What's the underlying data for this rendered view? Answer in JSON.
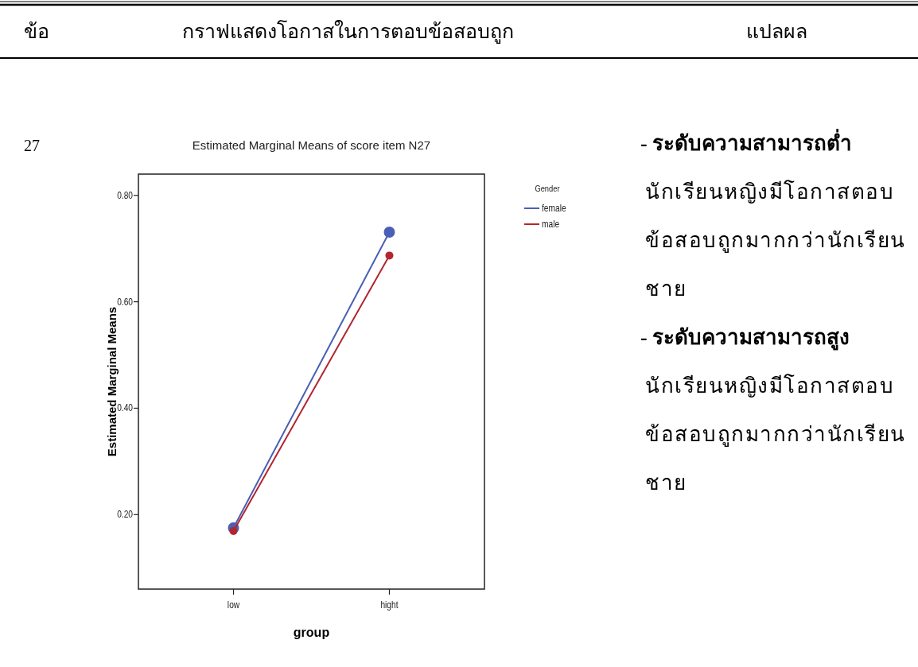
{
  "chart_data": {
    "type": "line",
    "title": "Estimated Marginal Means of score item N27",
    "xlabel": "group",
    "ylabel": "Estimated Marginal Means",
    "legend_title": "Gender",
    "categories": [
      "low",
      "hight"
    ],
    "series": [
      {
        "name": "female",
        "color": "#4a5fb5",
        "values": [
          0.175,
          0.731
        ]
      },
      {
        "name": "male",
        "color": "#b22630",
        "values": [
          0.169,
          0.687
        ]
      }
    ],
    "ylim": [
      0.06,
      0.84
    ],
    "yticks": [
      {
        "value": 0.2,
        "label": "0.20"
      },
      {
        "value": 0.4,
        "label": "0.40"
      },
      {
        "value": 0.6,
        "label": "0.60"
      },
      {
        "value": 0.8,
        "label": "0.80"
      }
    ],
    "marker": "circle",
    "legend": "top right",
    "grid": false,
    "annotations": [
      "ข้อ",
      "กราฟแสดงโอกาสในการตอบข้อสอบถูก",
      "แปลผล",
      "27",
      "- ระดับความสามารถต่ำ",
      "นักเรียนหญิงมีโอกาสตอบข้อสอบถูกมากกว่านักเรียนชาย",
      "- ระดับความสามารถสูง",
      "นักเรียนหญิงมีโอกาสตอบข้อสอบถูกมากกว่านักเรียนชาย"
    ]
  }
}
